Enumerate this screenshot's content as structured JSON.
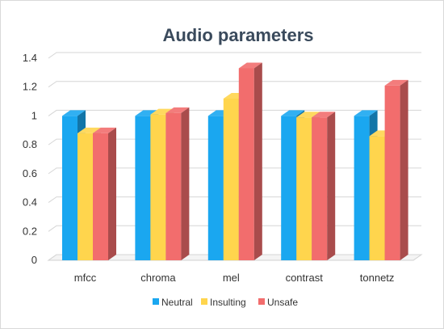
{
  "chart_data": {
    "type": "bar",
    "title": "Audio parameters",
    "xlabel": "",
    "ylabel": "",
    "categories": [
      "mfcc",
      "chroma",
      "mel",
      "contrast",
      "tonnetz"
    ],
    "series": [
      {
        "name": "Neutral",
        "values": [
          1.0,
          1.0,
          1.0,
          1.0,
          1.0
        ],
        "color": "#1aa7f0"
      },
      {
        "name": "Insulting",
        "values": [
          0.88,
          1.01,
          1.12,
          0.99,
          0.86
        ],
        "color": "#ffd54d"
      },
      {
        "name": "Unsafe",
        "values": [
          0.88,
          1.02,
          1.33,
          0.99,
          1.21
        ],
        "color": "#f26d6d"
      }
    ],
    "ylim": [
      0,
      1.4
    ],
    "yticks": [
      "0",
      "0.2",
      "0.4",
      "0.6",
      "0.8",
      "1",
      "1.2",
      "1.4"
    ],
    "grid": true,
    "legend_position": "bottom"
  }
}
